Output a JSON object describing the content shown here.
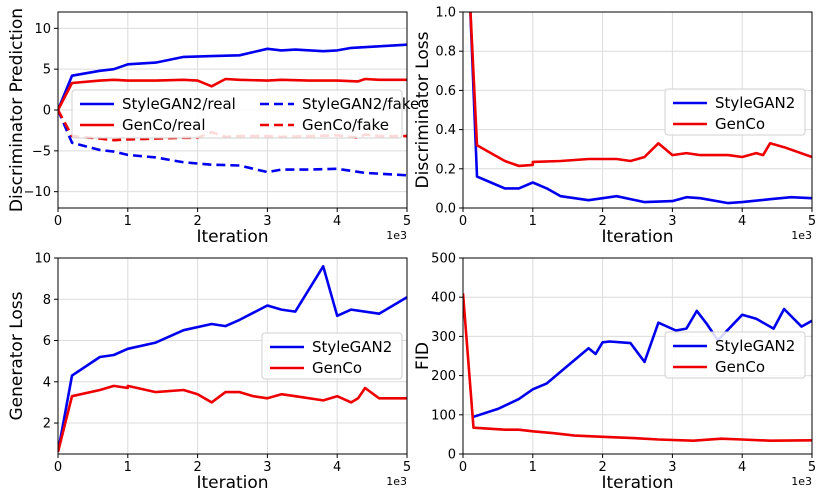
{
  "chart_data": [
    {
      "type": "line",
      "xlabel": "Iteration",
      "ylabel": "Discriminator Prediction",
      "x_exponent_label": "1e3",
      "xlim": [
        0,
        5
      ],
      "ylim": [
        -12,
        12
      ],
      "xticks": [
        0,
        1,
        2,
        3,
        4,
        5
      ],
      "yticks": [
        -10,
        -5,
        0,
        5,
        10
      ],
      "grid": true,
      "legend": "center",
      "legend_columns": 2,
      "series": [
        {
          "name": "StyleGAN2/real",
          "color": "#0000ee",
          "dash": "solid",
          "x": [
            0,
            0.2,
            0.6,
            0.8,
            1.0,
            1.4,
            1.8,
            2.2,
            2.6,
            3.0,
            3.2,
            3.4,
            3.8,
            4.0,
            4.2,
            4.6,
            5.0
          ],
          "y": [
            0,
            4.2,
            4.8,
            5.0,
            5.6,
            5.8,
            6.5,
            6.6,
            6.7,
            7.5,
            7.3,
            7.4,
            7.2,
            7.3,
            7.6,
            7.8,
            8.0
          ]
        },
        {
          "name": "GenCo/real",
          "color": "#ee0000",
          "dash": "solid",
          "x": [
            0,
            0.2,
            0.6,
            0.8,
            1.0,
            1.4,
            1.8,
            2.0,
            2.2,
            2.4,
            2.6,
            3.0,
            3.2,
            3.6,
            4.0,
            4.3,
            4.4,
            4.6,
            5.0
          ],
          "y": [
            0,
            3.3,
            3.6,
            3.7,
            3.6,
            3.6,
            3.7,
            3.6,
            2.9,
            3.8,
            3.7,
            3.6,
            3.7,
            3.6,
            3.6,
            3.5,
            3.8,
            3.7,
            3.7
          ]
        },
        {
          "name": "StyleGAN2/fake",
          "color": "#0000ee",
          "dash": "dashed",
          "x": [
            0,
            0.2,
            0.6,
            0.8,
            1.0,
            1.4,
            1.8,
            2.2,
            2.6,
            3.0,
            3.2,
            3.6,
            4.0,
            4.4,
            4.6,
            5.0
          ],
          "y": [
            0,
            -4.0,
            -4.9,
            -5.1,
            -5.5,
            -5.8,
            -6.4,
            -6.7,
            -6.8,
            -7.6,
            -7.3,
            -7.3,
            -7.2,
            -7.7,
            -7.8,
            -8.0
          ]
        },
        {
          "name": "GenCo/fake",
          "color": "#ee0000",
          "dash": "dashed",
          "x": [
            0,
            0.2,
            0.6,
            0.8,
            1.0,
            1.4,
            1.8,
            2.0,
            2.2,
            2.4,
            2.6,
            3.0,
            3.2,
            3.6,
            4.0,
            4.3,
            4.4,
            4.6,
            5.0
          ],
          "y": [
            0,
            -3.2,
            -3.5,
            -3.7,
            -3.6,
            -3.5,
            -3.4,
            -3.4,
            -2.7,
            -3.3,
            -3.2,
            -3.2,
            -3.3,
            -3.2,
            -3.1,
            -3.4,
            -3.0,
            -3.2,
            -3.2
          ]
        }
      ]
    },
    {
      "type": "line",
      "xlabel": "Iteration",
      "ylabel": "Discriminator Loss",
      "x_exponent_label": "1e3",
      "xlim": [
        0,
        5
      ],
      "ylim": [
        0,
        1.0
      ],
      "xticks": [
        0,
        1,
        2,
        3,
        4,
        5
      ],
      "yticks": [
        0.0,
        0.2,
        0.4,
        0.6,
        0.8,
        1.0
      ],
      "tick_decimals": 1,
      "grid": true,
      "legend": "center-right",
      "legend_columns": 1,
      "series": [
        {
          "name": "StyleGAN2",
          "color": "#0000ee",
          "dash": "solid",
          "x": [
            0.1,
            0.2,
            0.4,
            0.6,
            0.8,
            1.0,
            1.2,
            1.4,
            1.8,
            2.2,
            2.6,
            3.0,
            3.2,
            3.4,
            3.8,
            4.0,
            4.4,
            4.7,
            5.0
          ],
          "y": [
            1.05,
            0.16,
            0.13,
            0.1,
            0.1,
            0.13,
            0.1,
            0.06,
            0.04,
            0.06,
            0.03,
            0.035,
            0.055,
            0.05,
            0.025,
            0.03,
            0.045,
            0.055,
            0.05
          ]
        },
        {
          "name": "GenCo",
          "color": "#ee0000",
          "dash": "solid",
          "x": [
            0.1,
            0.2,
            0.4,
            0.6,
            0.8,
            1.0,
            1.0,
            1.4,
            1.8,
            2.0,
            2.2,
            2.4,
            2.6,
            2.8,
            3.0,
            3.2,
            3.4,
            3.8,
            4.0,
            4.2,
            4.3,
            4.4,
            4.6,
            5.0
          ],
          "y": [
            1.05,
            0.32,
            0.28,
            0.24,
            0.215,
            0.22,
            0.235,
            0.24,
            0.25,
            0.25,
            0.25,
            0.24,
            0.26,
            0.33,
            0.27,
            0.28,
            0.27,
            0.27,
            0.26,
            0.28,
            0.27,
            0.33,
            0.31,
            0.26
          ]
        }
      ]
    },
    {
      "type": "line",
      "xlabel": "Iteration",
      "ylabel": "Generator Loss",
      "x_exponent_label": "1e3",
      "xlim": [
        0,
        5
      ],
      "ylim": [
        0.5,
        10
      ],
      "xticks": [
        0,
        1,
        2,
        3,
        4,
        5
      ],
      "yticks": [
        2,
        4,
        6,
        8,
        10
      ],
      "grid": true,
      "legend": "center-right",
      "legend_columns": 1,
      "series": [
        {
          "name": "StyleGAN2",
          "color": "#0000ee",
          "dash": "solid",
          "x": [
            0,
            0.2,
            0.6,
            0.8,
            1.0,
            1.4,
            1.8,
            2.2,
            2.4,
            2.6,
            3.0,
            3.2,
            3.4,
            3.8,
            4.0,
            4.2,
            4.6,
            5.0
          ],
          "y": [
            0.6,
            4.3,
            5.2,
            5.3,
            5.6,
            5.9,
            6.5,
            6.8,
            6.7,
            7.0,
            7.7,
            7.5,
            7.4,
            9.6,
            7.2,
            7.5,
            7.3,
            8.1
          ]
        },
        {
          "name": "GenCo",
          "color": "#ee0000",
          "dash": "solid",
          "x": [
            0,
            0.2,
            0.6,
            0.8,
            1.0,
            1.0,
            1.4,
            1.8,
            2.0,
            2.2,
            2.4,
            2.6,
            2.8,
            3.0,
            3.2,
            3.4,
            3.8,
            4.0,
            4.2,
            4.3,
            4.4,
            4.6,
            5.0
          ],
          "y": [
            0.6,
            3.3,
            3.6,
            3.8,
            3.7,
            3.8,
            3.5,
            3.6,
            3.4,
            3.0,
            3.5,
            3.5,
            3.3,
            3.2,
            3.4,
            3.3,
            3.1,
            3.3,
            3.0,
            3.2,
            3.7,
            3.2,
            3.2
          ]
        }
      ]
    },
    {
      "type": "line",
      "xlabel": "Iteration",
      "ylabel": "FID",
      "x_exponent_label": "1e3",
      "xlim": [
        0,
        5
      ],
      "ylim": [
        0,
        500
      ],
      "xticks": [
        0,
        1,
        2,
        3,
        4,
        5
      ],
      "yticks": [
        0,
        100,
        200,
        300,
        400,
        500
      ],
      "grid": true,
      "legend": "center-right",
      "legend_columns": 1,
      "series": [
        {
          "name": "StyleGAN2",
          "color": "#0000ee",
          "dash": "solid",
          "x": [
            0.15,
            0.5,
            0.8,
            1.0,
            1.2,
            1.5,
            1.8,
            1.9,
            2.0,
            2.1,
            2.4,
            2.6,
            2.8,
            3.05,
            3.2,
            3.35,
            3.5,
            3.65,
            4.0,
            4.2,
            4.45,
            4.6,
            4.85,
            5.0
          ],
          "y": [
            95,
            115,
            140,
            165,
            180,
            225,
            270,
            255,
            285,
            287,
            283,
            235,
            335,
            315,
            320,
            365,
            330,
            290,
            355,
            345,
            320,
            370,
            325,
            340
          ]
        },
        {
          "name": "GenCo",
          "color": "#ee0000",
          "dash": "solid",
          "x": [
            0,
            0.15,
            0.6,
            0.8,
            1.0,
            1.3,
            1.6,
            2.0,
            2.5,
            2.8,
            3.3,
            3.7,
            4.0,
            4.4,
            5.0
          ],
          "y": [
            410,
            67,
            62,
            62,
            58,
            53,
            47,
            44,
            40,
            37,
            34,
            39,
            37,
            34,
            35
          ]
        }
      ]
    }
  ]
}
